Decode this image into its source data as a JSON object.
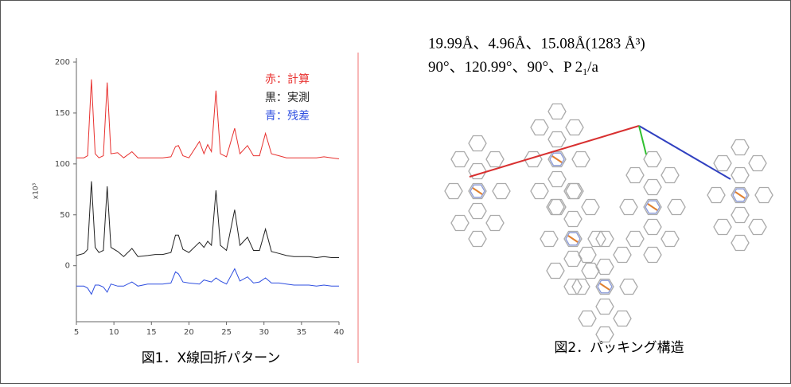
{
  "chart_data": {
    "type": "line",
    "ylabel": "x10³",
    "x": [
      5,
      6,
      6.5,
      7,
      7.5,
      8,
      8.6,
      9.1,
      9.6,
      10.5,
      11.3,
      12.4,
      13.2,
      14.5,
      15.5,
      16.5,
      17.6,
      18.2,
      18.6,
      19.2,
      20,
      21.4,
      22,
      22.5,
      23,
      23.6,
      24.2,
      25,
      26.1,
      26.8,
      27.8,
      28.6,
      29.4,
      30.2,
      31,
      32,
      33,
      34,
      35,
      36,
      37,
      38,
      39,
      40
    ],
    "series": [
      {
        "name": "赤：計算",
        "color": "#e8312f",
        "values": [
          106,
          106,
          108,
          183,
          110,
          106,
          108,
          180,
          110,
          111,
          106,
          112,
          106,
          106,
          106,
          106,
          107,
          117,
          118,
          108,
          106,
          122,
          110,
          119,
          112,
          172,
          110,
          107,
          135,
          110,
          118,
          108,
          108,
          130,
          110,
          108,
          106,
          106,
          106,
          106,
          106,
          107,
          106,
          105
        ]
      },
      {
        "name": "黒：実測",
        "color": "#222222",
        "values": [
          10,
          12,
          16,
          83,
          18,
          13,
          15,
          78,
          18,
          14,
          9,
          17,
          9,
          10,
          11,
          11,
          13,
          30,
          30,
          16,
          13,
          23,
          18,
          24,
          20,
          74,
          20,
          15,
          55,
          20,
          28,
          15,
          15,
          36,
          14,
          12,
          10,
          9,
          9,
          9,
          8,
          9,
          8,
          8
        ]
      },
      {
        "name": "青：残差",
        "color": "#2f4fe0",
        "values": [
          -20,
          -20,
          -22,
          -28,
          -19,
          -19,
          -21,
          -26,
          -18,
          -20,
          -20,
          -16,
          -20,
          -18,
          -18,
          -18,
          -17,
          -6,
          -8,
          -16,
          -17,
          -18,
          -14,
          -15,
          -16,
          -12,
          -15,
          -18,
          -3,
          -15,
          -11,
          -17,
          -16,
          -12,
          -17,
          -17,
          -18,
          -19,
          -19,
          -19,
          -20,
          -19,
          -20,
          -20
        ]
      }
    ],
    "xlim": [
      5,
      40
    ],
    "xticks": [
      5,
      10,
      15,
      20,
      25,
      30,
      35,
      40
    ],
    "ylim": [
      -55,
      200
    ],
    "yticks": [
      0,
      50,
      100,
      150,
      200
    ],
    "caption": "図1．X線回折パターン"
  },
  "figure2": {
    "cell_lengths": "19.99Å、4.96Å、15.08Å(1283 Å³)",
    "cell_angles": [
      "90°、120.99°、90°、P 2",
      "1",
      "/a"
    ],
    "caption": "図2．パッキング構造"
  }
}
